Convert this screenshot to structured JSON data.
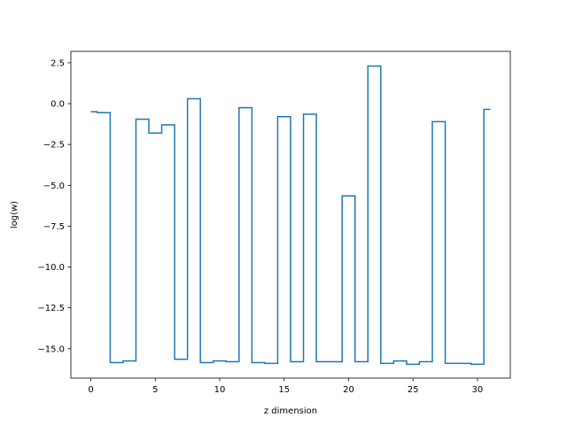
{
  "chart_data": {
    "type": "line",
    "drawstyle": "steps-mid",
    "title": "",
    "xlabel": "z dimension",
    "ylabel": "log(w)",
    "xlim": [
      -1.55,
      32.55
    ],
    "ylim": [
      -16.8,
      3.2
    ],
    "xticks": [
      0,
      5,
      10,
      15,
      20,
      25,
      30
    ],
    "yticks": [
      2.5,
      0.0,
      -2.5,
      -5.0,
      -7.5,
      -10.0,
      -12.5,
      -15.0
    ],
    "ytick_labels": [
      "2.5",
      "0.0",
      "−2.5",
      "−5.0",
      "−7.5",
      "−10.0",
      "−12.5",
      "−15.0"
    ],
    "grid": false,
    "legend": false,
    "line_color": "#1f77b4",
    "x": [
      0,
      1,
      2,
      3,
      4,
      5,
      6,
      7,
      8,
      9,
      10,
      11,
      12,
      13,
      14,
      15,
      16,
      17,
      18,
      19,
      20,
      21,
      22,
      23,
      24,
      25,
      26,
      27,
      28,
      29,
      30,
      31
    ],
    "y": [
      -0.5,
      -0.55,
      -15.85,
      -15.75,
      -0.95,
      -1.8,
      -1.3,
      -15.65,
      0.3,
      -15.85,
      -15.75,
      -15.8,
      -0.25,
      -15.85,
      -15.9,
      -0.8,
      -15.8,
      -0.65,
      -15.8,
      -15.8,
      -5.65,
      -15.8,
      2.3,
      -15.9,
      -15.75,
      -15.95,
      -15.8,
      -1.1,
      -15.9,
      -15.9,
      -15.95,
      -0.35
    ]
  }
}
